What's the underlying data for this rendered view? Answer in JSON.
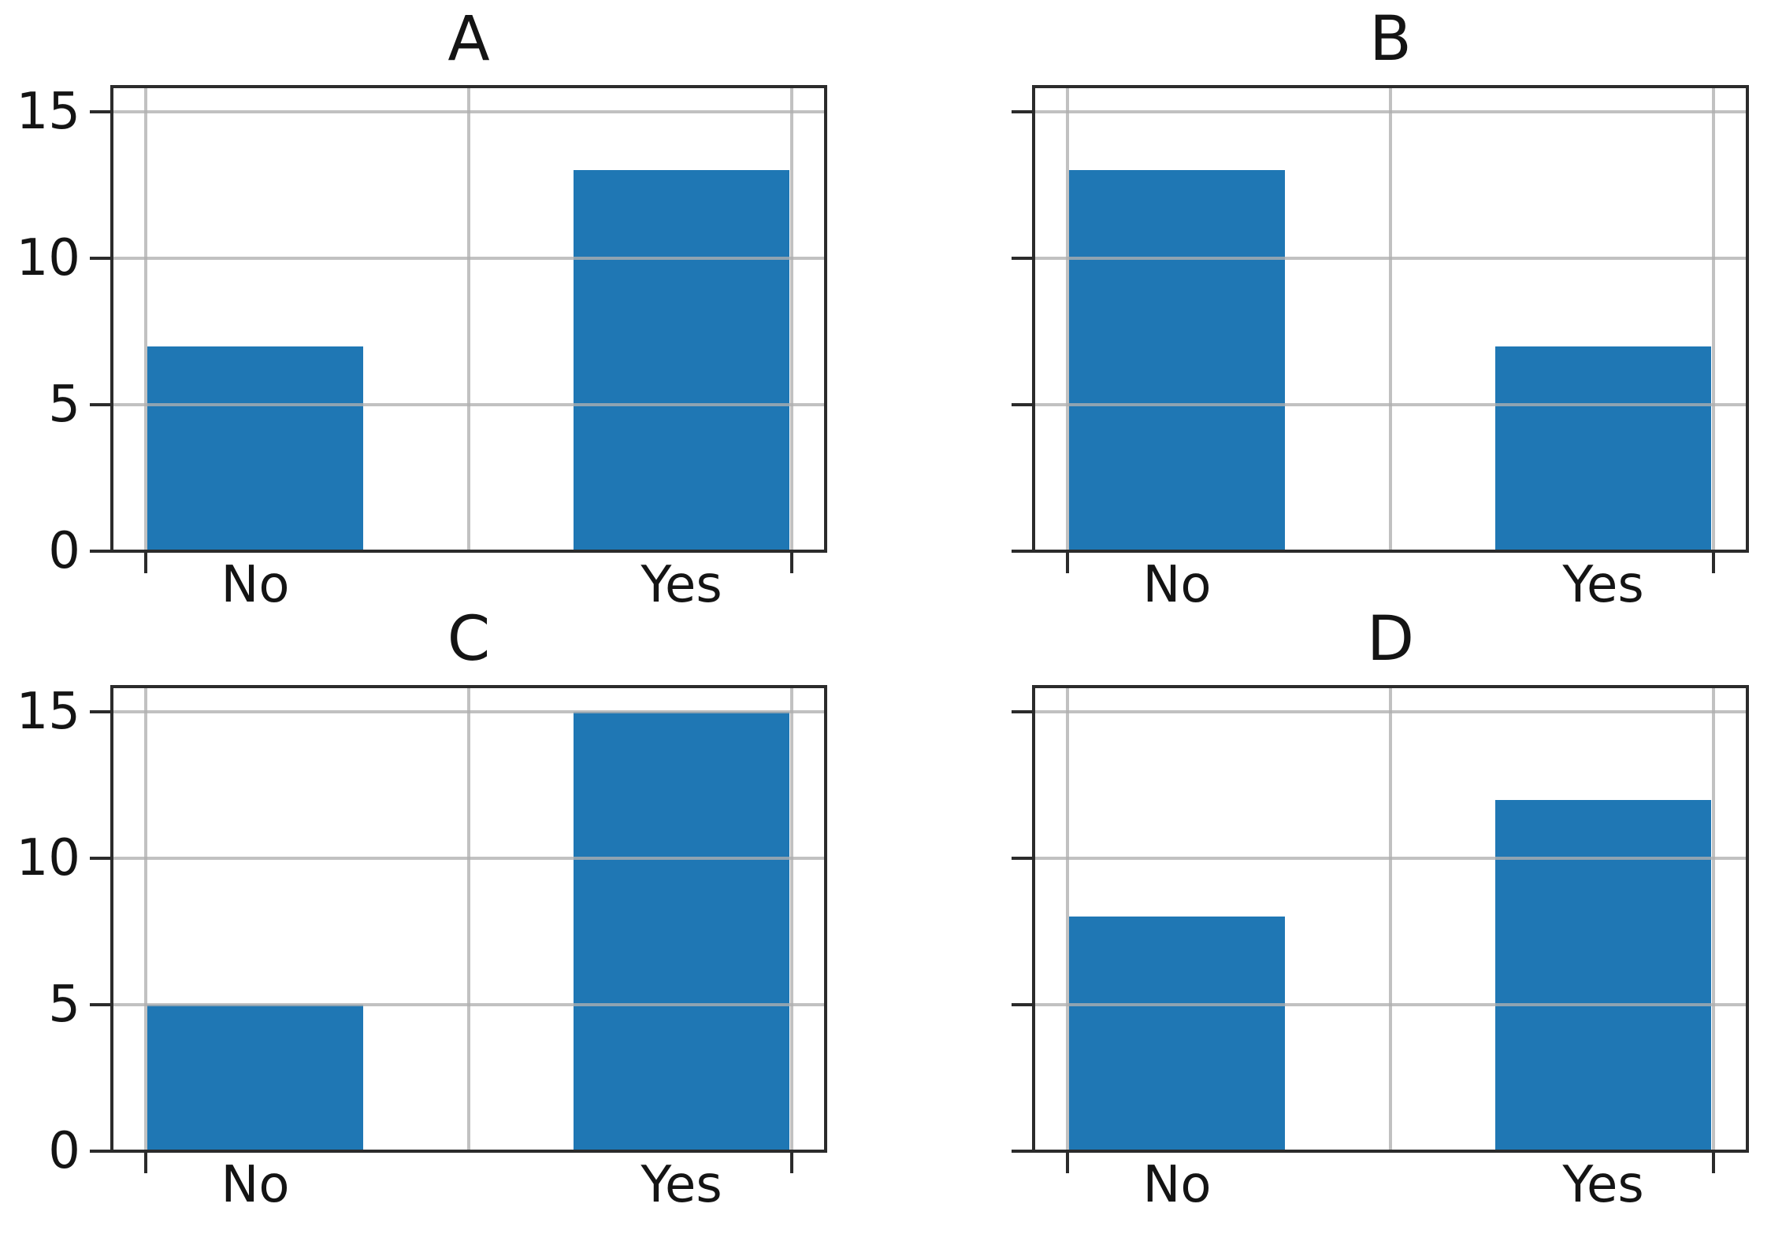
{
  "figure": {
    "background": "#ffffff",
    "bar_color": "#1f77b4",
    "grid_color": "#b0b0b0",
    "spine_color": "#2b2b2b",
    "text_color": "#141414"
  },
  "chart_data": [
    {
      "type": "bar",
      "title": "A",
      "categories": [
        "No",
        "Yes"
      ],
      "values": [
        7,
        13
      ],
      "yticks": [
        0,
        5,
        10,
        15
      ],
      "ytick_labels": [
        "0",
        "5",
        "10",
        "15"
      ],
      "ytick_labels_visible": true,
      "ylim": [
        0,
        15.9
      ],
      "grid": true,
      "xlabel": "",
      "ylabel": ""
    },
    {
      "type": "bar",
      "title": "B",
      "categories": [
        "No",
        "Yes"
      ],
      "values": [
        13,
        7
      ],
      "yticks": [
        0,
        5,
        10,
        15
      ],
      "ytick_labels": [],
      "ytick_labels_visible": false,
      "ylim": [
        0,
        15.9
      ],
      "grid": true,
      "xlabel": "",
      "ylabel": ""
    },
    {
      "type": "bar",
      "title": "C",
      "categories": [
        "No",
        "Yes"
      ],
      "values": [
        5,
        15
      ],
      "yticks": [
        0,
        5,
        10,
        15
      ],
      "ytick_labels": [
        "0",
        "5",
        "10",
        "15"
      ],
      "ytick_labels_visible": true,
      "ylim": [
        0,
        15.9
      ],
      "grid": true,
      "xlabel": "",
      "ylabel": ""
    },
    {
      "type": "bar",
      "title": "D",
      "categories": [
        "No",
        "Yes"
      ],
      "values": [
        8,
        12
      ],
      "yticks": [
        0,
        5,
        10,
        15
      ],
      "ytick_labels": [],
      "ytick_labels_visible": false,
      "ylim": [
        0,
        15.9
      ],
      "grid": true,
      "xlabel": "",
      "ylabel": ""
    }
  ]
}
